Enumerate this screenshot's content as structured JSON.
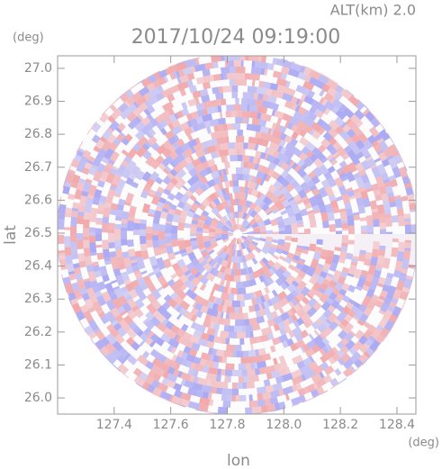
{
  "chart_data": {
    "type": "heatmap",
    "title": "2017/10/24 09:19:00",
    "subtitle": "ALT(km) 2.0",
    "x_label": "lon",
    "y_label": "lat",
    "x_unit": "(deg)",
    "y_unit": "(deg)",
    "xlim": [
      127.2,
      128.467
    ],
    "ylim": [
      25.951,
      27.038
    ],
    "xticks": [
      127.4,
      127.6,
      127.8,
      {
        "value": 128.0,
        "label": "128.0"
      },
      128.2,
      128.4
    ],
    "yticks": [
      {
        "value": 26.0,
        "label": "26.0"
      },
      26.1,
      26.2,
      26.3,
      26.4,
      26.5,
      26.6,
      26.7,
      26.8,
      26.9,
      {
        "value": 27.0,
        "label": "27.0"
      }
    ]
  }
}
